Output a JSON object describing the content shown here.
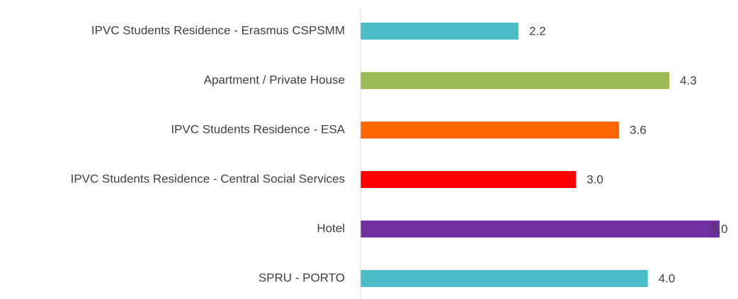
{
  "chart_data": {
    "type": "barh",
    "categories": [
      "IPVC Students Residence - Erasmus CSPSMM",
      "Apartment / Private House",
      "IPVC Students Residence - ESA",
      "IPVC Students Residence - Central Social Services",
      "Hotel",
      "SPRU - PORTO"
    ],
    "values": [
      2.2,
      4.3,
      3.6,
      3,
      5,
      4
    ],
    "value_labels": [
      "2.2",
      "4.3",
      "3.6",
      "3.0",
      "5.0",
      "4.0"
    ],
    "colors": [
      "#4bbcc8",
      "#9bbb59",
      "#ff6600",
      "#ff0000",
      "#7030a0",
      "#4bbcc8"
    ],
    "xlim": [
      0,
      5
    ]
  }
}
